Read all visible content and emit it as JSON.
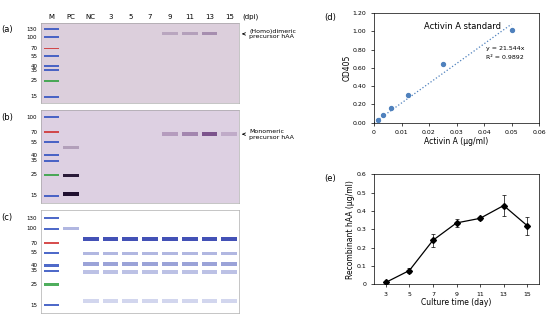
{
  "lanes": [
    "M",
    "PC",
    "NC",
    "3",
    "5",
    "7",
    "9",
    "11",
    "13",
    "15"
  ],
  "lane_unit": "(dpi)",
  "blots": [
    {
      "panel": "(a)",
      "markers": [
        130,
        100,
        70,
        55,
        40,
        35,
        25,
        15
      ],
      "marker_colors": [
        "#3050c0",
        "#3050c0",
        "#d03030",
        "#3050c0",
        "#3050c0",
        "#3050c0",
        "#30a040",
        "#3050c0"
      ],
      "annotation": "(Homo)dimeric\nprecursor hAA",
      "color": "#dccfdc"
    },
    {
      "panel": "(b)",
      "markers": [
        100,
        70,
        55,
        40,
        35,
        25,
        15
      ],
      "marker_colors": [
        "#3050c0",
        "#d03030",
        "#3050c0",
        "#3050c0",
        "#3050c0",
        "#30a040",
        "#3050c0"
      ],
      "annotation": "Monomeric\nprecursor hAA",
      "color": "#ddd0e2"
    },
    {
      "panel": "(c)",
      "markers": [
        130,
        100,
        70,
        55,
        40,
        35,
        25,
        15
      ],
      "marker_colors": [
        "#3050c0",
        "#3050c0",
        "#d03030",
        "#3050c0",
        "#3050c0",
        "#3050c0",
        "#30a040",
        "#3050c0"
      ],
      "color": "#ffffff"
    }
  ],
  "chart_data": [
    {
      "type": "scatter",
      "panel": "(d)",
      "title": "Activin A standard",
      "x_label": "Activin A (µg/ml)",
      "y_label": "OD405",
      "x": [
        0.00156,
        0.003125,
        0.00625,
        0.0125,
        0.025,
        0.05
      ],
      "values": [
        0.03,
        0.08,
        0.16,
        0.3,
        0.64,
        1.01
      ],
      "color": "#4f81bd",
      "marker": "circle",
      "trendline": {
        "x": [
          0,
          0.05
        ],
        "values": [
          0,
          1.077
        ],
        "line_style": "dotted"
      },
      "annotations": [
        "y = 21.544x",
        "R² = 0.9892"
      ],
      "xlim": [
        0,
        0.06
      ],
      "xticks": [
        0,
        0.01,
        0.02,
        0.03,
        0.04,
        0.05,
        0.06
      ],
      "ylim": [
        0,
        1.2
      ],
      "yticks": [
        {
          "value": 0,
          "label": "0.00"
        },
        {
          "value": 0.2,
          "label": "0.20"
        },
        {
          "value": 0.4,
          "label": "0.40"
        },
        {
          "value": 0.6,
          "label": "0.60"
        },
        {
          "value": 0.8,
          "label": "0.80"
        },
        {
          "value": 1.0,
          "label": "1.00"
        },
        {
          "value": 1.2,
          "label": "1.20"
        }
      ]
    },
    {
      "type": "line",
      "panel": "(e)",
      "x_label": "Culture time (day)",
      "y_label": "Recombinant hAA (µg/ml)",
      "x": [
        3,
        5,
        7,
        9,
        11,
        13,
        15
      ],
      "values": [
        0.01,
        0.075,
        0.24,
        0.335,
        0.36,
        0.43,
        0.32
      ],
      "errors": [
        0.005,
        0.015,
        0.035,
        0.02,
        0.01,
        0.055,
        0.05
      ],
      "color": "#000000",
      "marker": "diamond",
      "line_style": "solid",
      "xlim": [
        2,
        16
      ],
      "xticks": [
        3,
        5,
        7,
        9,
        11,
        13,
        15
      ],
      "ylim": [
        0,
        0.6
      ],
      "yticks": [
        0,
        0.1,
        0.2,
        0.3,
        0.4,
        0.5,
        0.6
      ]
    }
  ]
}
